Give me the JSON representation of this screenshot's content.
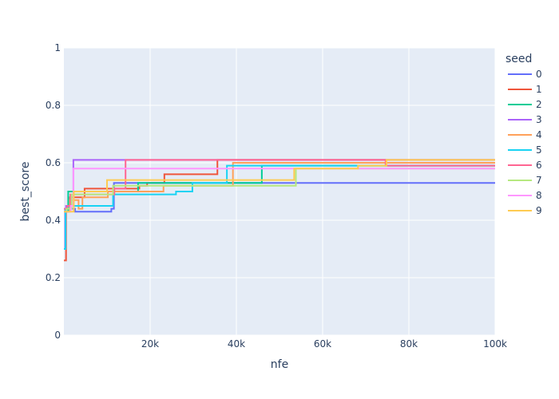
{
  "chart_data": {
    "type": "line",
    "line_shape": "step-after",
    "xlabel": "nfe",
    "ylabel": "best_score",
    "xlim": [
      0,
      100000
    ],
    "ylim": [
      0,
      1
    ],
    "x_ticks": [
      20000,
      40000,
      60000,
      80000,
      100000
    ],
    "x_tick_labels": [
      "20k",
      "40k",
      "60k",
      "80k",
      "100k"
    ],
    "y_ticks": [
      0,
      0.2,
      0.4,
      0.6,
      0.8,
      1
    ],
    "y_tick_labels": [
      "0",
      "0.2",
      "0.4",
      "0.6",
      "0.8",
      "1"
    ],
    "grid": true,
    "plot_background": "#e5ecf6",
    "legend_title": "seed",
    "legend_position": "right",
    "series": [
      {
        "name": "0",
        "color": "#636efa",
        "x": [
          0,
          300,
          1200,
          2600,
          11000,
          11600,
          100000
        ],
        "y": [
          0.3,
          0.44,
          0.44,
          0.43,
          0.44,
          0.53,
          0.53
        ]
      },
      {
        "name": "1",
        "color": "#ef553b",
        "x": [
          0,
          500,
          1400,
          4800,
          10400,
          17500,
          19300,
          23300,
          35600,
          100000
        ],
        "y": [
          0.26,
          0.44,
          0.48,
          0.51,
          0.51,
          0.52,
          0.53,
          0.56,
          0.61,
          0.61
        ]
      },
      {
        "name": "2",
        "color": "#00cc96",
        "x": [
          0,
          1000,
          17200,
          45900,
          100000
        ],
        "y": [
          0.43,
          0.5,
          0.53,
          0.59,
          0.59
        ]
      },
      {
        "name": "3",
        "color": "#ab63fa",
        "x": [
          0,
          500,
          2200,
          100000
        ],
        "y": [
          0.43,
          0.45,
          0.61,
          0.61
        ]
      },
      {
        "name": "4",
        "color": "#ffa15a",
        "x": [
          0,
          1400,
          3400,
          4300,
          10200,
          23100,
          39200,
          100000
        ],
        "y": [
          0.43,
          0.47,
          0.44,
          0.48,
          0.5,
          0.52,
          0.6,
          0.6
        ]
      },
      {
        "name": "5",
        "color": "#19d3f3",
        "x": [
          0,
          400,
          1000,
          11400,
          26000,
          29800,
          37800,
          100000
        ],
        "y": [
          0.3,
          0.44,
          0.45,
          0.49,
          0.5,
          0.53,
          0.59,
          0.59
        ]
      },
      {
        "name": "6",
        "color": "#ff6692",
        "x": [
          0,
          800,
          1500,
          11700,
          14300,
          74600,
          100000
        ],
        "y": [
          0.44,
          0.45,
          0.49,
          0.51,
          0.61,
          0.59,
          0.59
        ]
      },
      {
        "name": "7",
        "color": "#b6e880",
        "x": [
          0,
          600,
          1800,
          11400,
          53800,
          100000
        ],
        "y": [
          0.43,
          0.44,
          0.49,
          0.52,
          0.58,
          0.58
        ]
      },
      {
        "name": "8",
        "color": "#ff97ff",
        "x": [
          0,
          1600,
          2200,
          100000
        ],
        "y": [
          0.43,
          0.45,
          0.58,
          0.58
        ]
      },
      {
        "name": "9",
        "color": "#fecb52",
        "x": [
          0,
          2300,
          10000,
          30000,
          53400,
          68200,
          74800,
          100000
        ],
        "y": [
          0.43,
          0.5,
          0.54,
          0.54,
          0.58,
          0.59,
          0.61,
          0.61
        ]
      }
    ]
  }
}
